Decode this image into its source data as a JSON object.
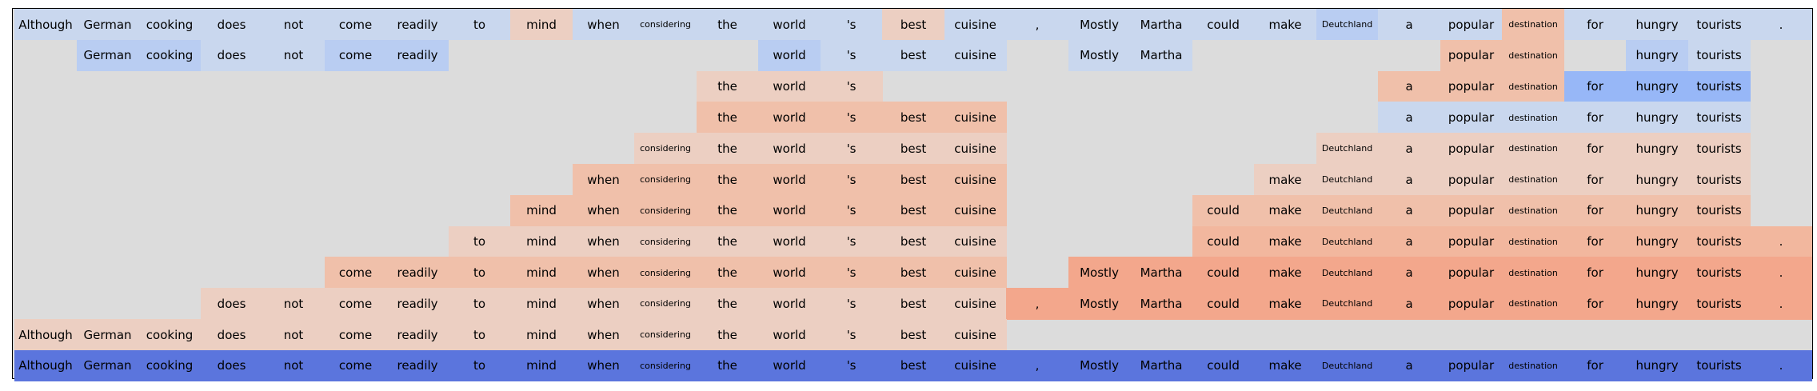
{
  "tokens": [
    "Although",
    "German",
    "cooking",
    "does",
    "not",
    "come",
    "readily",
    "to",
    "mind",
    "when",
    "considering",
    "the",
    "world",
    "'s",
    "best",
    "cuisine",
    ",",
    "Mostly",
    "Martha",
    "could",
    "make",
    "Deutchland",
    "a",
    "popular",
    "destination",
    "for",
    "hungry",
    "tourists",
    "."
  ],
  "small_tokens": [
    "considering",
    "Deutchland",
    "destination"
  ],
  "colors": {
    "background": "#dcdcdc",
    "L1": "#c9d7ee",
    "L2": "#b9cdf2",
    "L3": "#97b7f7",
    "C1": "#eccfc2",
    "C2": "#f0c0aa",
    "C3": "#f2b79e",
    "C4": "#f3a78c",
    "DB": "#5b75dd"
  },
  "rows": [
    {
      "cells": [
        [
          0,
          "L1"
        ],
        [
          1,
          "L1"
        ],
        [
          2,
          "L1"
        ],
        [
          3,
          "L1"
        ],
        [
          4,
          "L1"
        ],
        [
          5,
          "L1"
        ],
        [
          6,
          "L1"
        ],
        [
          7,
          "L1"
        ],
        [
          8,
          "C1"
        ],
        [
          9,
          "L1"
        ],
        [
          10,
          "L1"
        ],
        [
          11,
          "L1"
        ],
        [
          12,
          "L1"
        ],
        [
          13,
          "L1"
        ],
        [
          14,
          "C1"
        ],
        [
          15,
          "L1"
        ],
        [
          16,
          "L1"
        ],
        [
          17,
          "L1"
        ],
        [
          18,
          "L1"
        ],
        [
          19,
          "L1"
        ],
        [
          20,
          "L1"
        ],
        [
          21,
          "L2"
        ],
        [
          22,
          "L1"
        ],
        [
          23,
          "L1"
        ],
        [
          24,
          "C2"
        ],
        [
          25,
          "L1"
        ],
        [
          26,
          "L1"
        ],
        [
          27,
          "L1"
        ],
        [
          28,
          "L1"
        ]
      ]
    },
    {
      "cells": [
        [
          1,
          "L2"
        ],
        [
          2,
          "L2"
        ],
        [
          3,
          "L1"
        ],
        [
          4,
          "L1"
        ],
        [
          5,
          "L2"
        ],
        [
          6,
          "L2"
        ],
        [
          12,
          "L2"
        ],
        [
          13,
          "L1"
        ],
        [
          14,
          "L1"
        ],
        [
          15,
          "L1"
        ],
        [
          17,
          "L1"
        ],
        [
          18,
          "L1"
        ],
        [
          23,
          "C2"
        ],
        [
          24,
          "C2"
        ],
        [
          26,
          "L2"
        ],
        [
          27,
          "L1"
        ]
      ]
    },
    {
      "cells": [
        [
          11,
          "C1"
        ],
        [
          12,
          "C1"
        ],
        [
          13,
          "C1"
        ],
        [
          22,
          "C2"
        ],
        [
          23,
          "C2"
        ],
        [
          24,
          "C2"
        ],
        [
          25,
          "L3"
        ],
        [
          26,
          "L3"
        ],
        [
          27,
          "L3"
        ]
      ]
    },
    {
      "cells": [
        [
          11,
          "C2"
        ],
        [
          12,
          "C2"
        ],
        [
          13,
          "C2"
        ],
        [
          14,
          "C2"
        ],
        [
          15,
          "C2"
        ],
        [
          22,
          "L1"
        ],
        [
          23,
          "L1"
        ],
        [
          24,
          "L1"
        ],
        [
          25,
          "L1"
        ],
        [
          26,
          "L1"
        ],
        [
          27,
          "L1"
        ]
      ]
    },
    {
      "cells": [
        [
          10,
          "C1"
        ],
        [
          11,
          "C1"
        ],
        [
          12,
          "C1"
        ],
        [
          13,
          "C1"
        ],
        [
          14,
          "C1"
        ],
        [
          15,
          "C1"
        ],
        [
          21,
          "C1"
        ],
        [
          22,
          "C1"
        ],
        [
          23,
          "C1"
        ],
        [
          24,
          "C1"
        ],
        [
          25,
          "C1"
        ],
        [
          26,
          "C1"
        ],
        [
          27,
          "C1"
        ]
      ]
    },
    {
      "cells": [
        [
          9,
          "C2"
        ],
        [
          10,
          "C2"
        ],
        [
          11,
          "C2"
        ],
        [
          12,
          "C2"
        ],
        [
          13,
          "C2"
        ],
        [
          14,
          "C2"
        ],
        [
          15,
          "C2"
        ],
        [
          20,
          "C1"
        ],
        [
          21,
          "C1"
        ],
        [
          22,
          "C1"
        ],
        [
          23,
          "C1"
        ],
        [
          24,
          "C1"
        ],
        [
          25,
          "C1"
        ],
        [
          26,
          "C1"
        ],
        [
          27,
          "C1"
        ]
      ]
    },
    {
      "cells": [
        [
          8,
          "C2"
        ],
        [
          9,
          "C2"
        ],
        [
          10,
          "C2"
        ],
        [
          11,
          "C2"
        ],
        [
          12,
          "C2"
        ],
        [
          13,
          "C2"
        ],
        [
          14,
          "C2"
        ],
        [
          15,
          "C2"
        ],
        [
          19,
          "C2"
        ],
        [
          20,
          "C2"
        ],
        [
          21,
          "C2"
        ],
        [
          22,
          "C2"
        ],
        [
          23,
          "C2"
        ],
        [
          24,
          "C2"
        ],
        [
          25,
          "C2"
        ],
        [
          26,
          "C2"
        ],
        [
          27,
          "C2"
        ]
      ]
    },
    {
      "cells": [
        [
          7,
          "C1"
        ],
        [
          8,
          "C1"
        ],
        [
          9,
          "C1"
        ],
        [
          10,
          "C1"
        ],
        [
          11,
          "C1"
        ],
        [
          12,
          "C1"
        ],
        [
          13,
          "C1"
        ],
        [
          14,
          "C1"
        ],
        [
          15,
          "C1"
        ],
        [
          19,
          "C3"
        ],
        [
          20,
          "C3"
        ],
        [
          21,
          "C3"
        ],
        [
          22,
          "C3"
        ],
        [
          23,
          "C3"
        ],
        [
          24,
          "C3"
        ],
        [
          25,
          "C3"
        ],
        [
          26,
          "C3"
        ],
        [
          27,
          "C3"
        ],
        [
          28,
          "C3"
        ]
      ]
    },
    {
      "cells": [
        [
          5,
          "C2"
        ],
        [
          6,
          "C2"
        ],
        [
          7,
          "C2"
        ],
        [
          8,
          "C2"
        ],
        [
          9,
          "C2"
        ],
        [
          10,
          "C2"
        ],
        [
          11,
          "C2"
        ],
        [
          12,
          "C2"
        ],
        [
          13,
          "C2"
        ],
        [
          14,
          "C2"
        ],
        [
          15,
          "C2"
        ],
        [
          17,
          "C4"
        ],
        [
          18,
          "C4"
        ],
        [
          19,
          "C4"
        ],
        [
          20,
          "C4"
        ],
        [
          21,
          "C4"
        ],
        [
          22,
          "C4"
        ],
        [
          23,
          "C4"
        ],
        [
          24,
          "C4"
        ],
        [
          25,
          "C4"
        ],
        [
          26,
          "C4"
        ],
        [
          27,
          "C4"
        ],
        [
          28,
          "C4"
        ]
      ]
    },
    {
      "cells": [
        [
          3,
          "C1"
        ],
        [
          4,
          "C1"
        ],
        [
          5,
          "C1"
        ],
        [
          6,
          "C1"
        ],
        [
          7,
          "C1"
        ],
        [
          8,
          "C1"
        ],
        [
          9,
          "C1"
        ],
        [
          10,
          "C1"
        ],
        [
          11,
          "C1"
        ],
        [
          12,
          "C1"
        ],
        [
          13,
          "C1"
        ],
        [
          14,
          "C1"
        ],
        [
          15,
          "C1"
        ],
        [
          16,
          "C4"
        ],
        [
          17,
          "C4"
        ],
        [
          18,
          "C4"
        ],
        [
          19,
          "C4"
        ],
        [
          20,
          "C4"
        ],
        [
          21,
          "C4"
        ],
        [
          22,
          "C4"
        ],
        [
          23,
          "C4"
        ],
        [
          24,
          "C4"
        ],
        [
          25,
          "C4"
        ],
        [
          26,
          "C4"
        ],
        [
          27,
          "C4"
        ],
        [
          28,
          "C4"
        ]
      ]
    },
    {
      "cells": [
        [
          0,
          "C1"
        ],
        [
          1,
          "C1"
        ],
        [
          2,
          "C1"
        ],
        [
          3,
          "C1"
        ],
        [
          4,
          "C1"
        ],
        [
          5,
          "C1"
        ],
        [
          6,
          "C1"
        ],
        [
          7,
          "C1"
        ],
        [
          8,
          "C1"
        ],
        [
          9,
          "C1"
        ],
        [
          10,
          "C1"
        ],
        [
          11,
          "C1"
        ],
        [
          12,
          "C1"
        ],
        [
          13,
          "C1"
        ],
        [
          14,
          "C1"
        ],
        [
          15,
          "C1"
        ]
      ]
    },
    {
      "cells": [
        [
          0,
          "DB"
        ],
        [
          1,
          "DB"
        ],
        [
          2,
          "DB"
        ],
        [
          3,
          "DB"
        ],
        [
          4,
          "DB"
        ],
        [
          5,
          "DB"
        ],
        [
          6,
          "DB"
        ],
        [
          7,
          "DB"
        ],
        [
          8,
          "DB"
        ],
        [
          9,
          "DB"
        ],
        [
          10,
          "DB"
        ],
        [
          11,
          "DB"
        ],
        [
          12,
          "DB"
        ],
        [
          13,
          "DB"
        ],
        [
          14,
          "DB"
        ],
        [
          15,
          "DB"
        ],
        [
          16,
          "DB"
        ],
        [
          17,
          "DB"
        ],
        [
          18,
          "DB"
        ],
        [
          19,
          "DB"
        ],
        [
          20,
          "DB"
        ],
        [
          21,
          "DB"
        ],
        [
          22,
          "DB"
        ],
        [
          23,
          "DB"
        ],
        [
          24,
          "DB"
        ],
        [
          25,
          "DB"
        ],
        [
          26,
          "DB"
        ],
        [
          27,
          "DB"
        ],
        [
          28,
          "DB"
        ]
      ]
    }
  ]
}
